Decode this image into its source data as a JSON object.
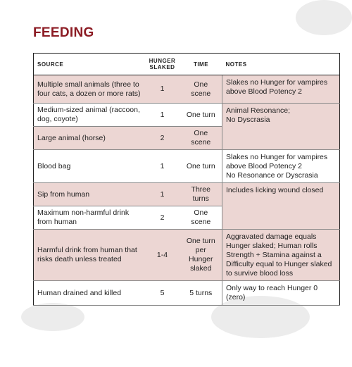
{
  "title": "FEEDING",
  "table": {
    "headers": [
      "SOURCE",
      "HUNGER SLAKED",
      "TIME",
      "NOTES"
    ],
    "rows": [
      {
        "source": "Multiple small animals (three to four cats, a dozen or more rats)",
        "hunger": "1",
        "time": "One scene",
        "notes": [
          "Slakes no Hunger for vampires above Blood Potency 2"
        ]
      },
      {
        "source": "Medium-sized animal (raccoon, dog, coyote)",
        "hunger": "1",
        "time": "One turn",
        "notes": [
          "Animal Resonance;",
          "No Dyscrasia"
        ]
      },
      {
        "source": "Large animal (horse)",
        "hunger": "2",
        "time": "One scene"
      },
      {
        "source": "Blood bag",
        "hunger": "1",
        "time": "One turn",
        "notes": [
          "Slakes no Hunger for vampires above Blood Potency 2",
          "No Resonance or Dyscrasia"
        ]
      },
      {
        "source": "Sip from human",
        "hunger": "1",
        "time": "Three turns",
        "notes": [
          "Includes licking wound closed"
        ]
      },
      {
        "source": "Maximum non-harmful drink from human",
        "hunger": "2",
        "time": "One scene"
      },
      {
        "source": "Harmful drink from human that risks death unless treated",
        "hunger": "1-4",
        "time": "One turn per Hunger slaked",
        "notes": [
          "Aggravated damage equals Hunger slaked; Human rolls Strength + Stamina against a Difficulty equal to Hunger slaked to survive blood loss"
        ]
      },
      {
        "source": "Human drained and killed",
        "hunger": "5",
        "time": "5 turns",
        "notes": [
          "Only way to reach Hunger 0 (zero)"
        ]
      }
    ]
  }
}
